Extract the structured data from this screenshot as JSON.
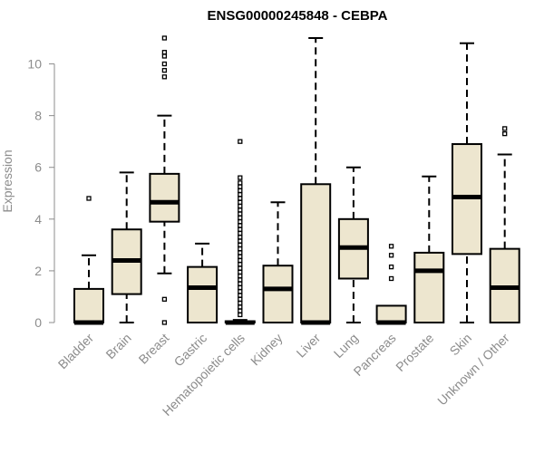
{
  "chart_data": {
    "type": "box",
    "title": "ENSG00000245848 - CEBPA",
    "ylabel": "Expression",
    "xlabel": "",
    "ylim": [
      0,
      11
    ],
    "yticks": [
      0,
      2,
      4,
      6,
      8,
      10
    ],
    "tick_labels": [
      "0",
      "2",
      "4",
      "6",
      "8",
      "10"
    ],
    "grid": false,
    "colors": {
      "box_fill": "#ede6cf",
      "stroke": "#000000",
      "axis_text": "#8c8c8c"
    },
    "categories": [
      "Bladder",
      "Brain",
      "Breast",
      "Gastric",
      "Hematopoietic cells",
      "Kidney",
      "Liver",
      "Lung",
      "Pancreas",
      "Prostate",
      "Skin",
      "Unknown / Other"
    ],
    "boxes": [
      {
        "min": 0,
        "q1": 0,
        "median": 0,
        "q3": 1.3,
        "max": 2.6,
        "outliers": [
          4.8
        ]
      },
      {
        "min": 0,
        "q1": 1.1,
        "median": 2.4,
        "q3": 3.6,
        "max": 5.8,
        "outliers": []
      },
      {
        "min": 1.9,
        "q1": 3.9,
        "median": 4.65,
        "q3": 5.75,
        "max": 8.0,
        "outliers": [
          0,
          0.9,
          9.5,
          9.75,
          10.0,
          10.3,
          10.45,
          11.0
        ]
      },
      {
        "min": 0,
        "q1": 0,
        "median": 1.35,
        "q3": 2.15,
        "max": 3.05,
        "outliers": []
      },
      {
        "min": 0,
        "q1": 0,
        "median": 0,
        "q3": 0.05,
        "max": 0.1,
        "outliers": [
          0.3,
          0.45,
          0.6,
          0.75,
          0.9,
          1.05,
          1.2,
          1.35,
          1.5,
          1.65,
          1.8,
          1.95,
          2.1,
          2.25,
          2.4,
          2.55,
          2.7,
          2.85,
          3.0,
          3.15,
          3.3,
          3.45,
          3.6,
          3.75,
          3.9,
          4.05,
          4.2,
          4.35,
          4.5,
          4.65,
          4.8,
          4.95,
          5.1,
          5.25,
          5.4,
          5.6,
          7.0
        ]
      },
      {
        "min": 0,
        "q1": 0,
        "median": 1.3,
        "q3": 2.2,
        "max": 4.65,
        "outliers": []
      },
      {
        "min": 0,
        "q1": 0,
        "median": 0,
        "q3": 5.35,
        "max": 11.0,
        "outliers": []
      },
      {
        "min": 0,
        "q1": 1.7,
        "median": 2.9,
        "q3": 4.0,
        "max": 6.0,
        "outliers": []
      },
      {
        "min": 0,
        "q1": 0,
        "median": 0,
        "q3": 0.65,
        "max": 0.65,
        "outliers": [
          1.7,
          2.15,
          2.6,
          2.95
        ]
      },
      {
        "min": 0,
        "q1": 0,
        "median": 2.0,
        "q3": 2.7,
        "max": 5.65,
        "outliers": []
      },
      {
        "min": 0,
        "q1": 2.65,
        "median": 4.85,
        "q3": 6.9,
        "max": 10.8,
        "outliers": []
      },
      {
        "min": 0,
        "q1": 0,
        "median": 1.35,
        "q3": 2.85,
        "max": 6.5,
        "outliers": [
          7.3,
          7.5
        ]
      }
    ]
  }
}
